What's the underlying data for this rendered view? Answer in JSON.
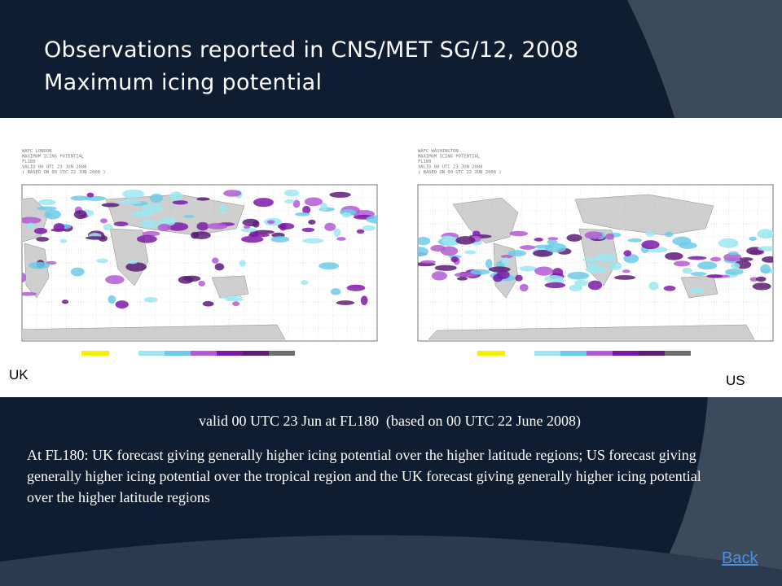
{
  "title": {
    "line1": "Observations reported in CNS/MET SG/12, 2008",
    "line2": "Maximum icing potential"
  },
  "maps": {
    "uk": {
      "header": [
        "WAFC LONDON",
        "MAXIMUM ICING POTENTIAL",
        "FL180",
        "VALID 00 UTC 23 JUN 2008",
        "( BASED ON 00 UTC 22 JUN 2008 )"
      ],
      "scale_colors": [
        "#f4f000",
        "#9be8f2",
        "#6ccbe8",
        "#b25bd4",
        "#7d17a6",
        "#5c1b75",
        "#6e6e6e"
      ]
    },
    "us": {
      "header": [
        "WAFC WASHINGTON",
        "MAXIMUM ICING POTENTIAL",
        "FL180",
        "VALID 00 UTC 23 JUN 2008",
        "( BASED ON 00 UTC 22 JUN 2008 )"
      ],
      "scale_colors": [
        "#f4f000",
        "#9be8f2",
        "#6ccbe8",
        "#b25bd4",
        "#7d17a6",
        "#5c1b75",
        "#6e6e6e"
      ]
    }
  },
  "labels": {
    "uk": "UK",
    "us": "US"
  },
  "valid_text": "valid 00 UTC 23 Jun at FL180  (based on 00 UTC 22 June 2008)",
  "body_text": "At FL180: UK forecast giving generally higher icing potential over the higher latitude regions; US forecast giving generally higher icing potential over the tropical region and the UK forecast giving generally higher icing potential over the higher latitude regions",
  "back_link": "Back",
  "colors": {
    "background": "#0f1d33",
    "swoosh": "#3b4a5c",
    "link": "#4a90e2"
  }
}
